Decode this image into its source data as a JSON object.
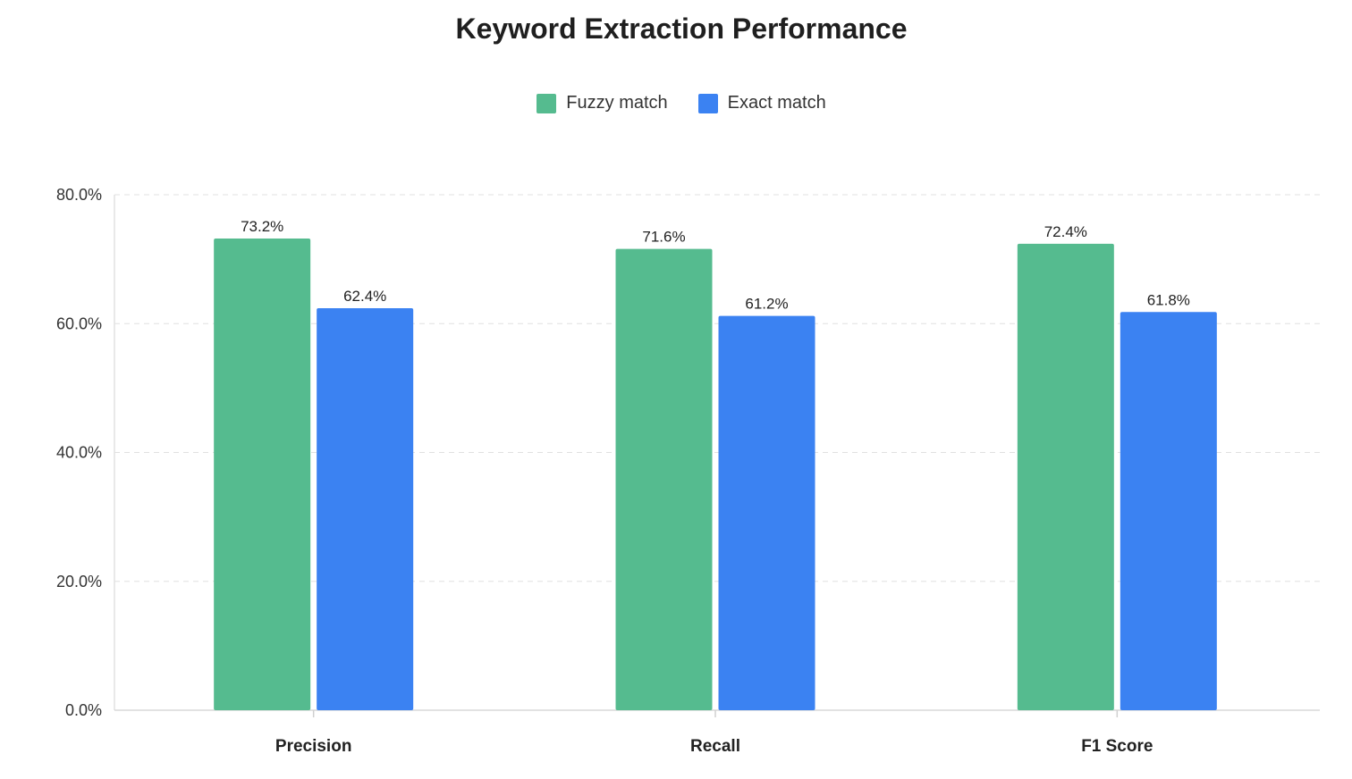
{
  "chart_data": {
    "type": "bar",
    "title": "Keyword Extraction Performance",
    "categories": [
      "Precision",
      "Recall",
      "F1 Score"
    ],
    "series": [
      {
        "name": "Fuzzy match",
        "values": [
          73.2,
          71.6,
          72.4
        ],
        "color": "#55bb8f"
      },
      {
        "name": "Exact match",
        "values": [
          62.4,
          61.2,
          61.8
        ],
        "color": "#3b82f2"
      }
    ],
    "value_labels": [
      [
        "73.2%",
        "71.6%",
        "72.4%"
      ],
      [
        "62.4%",
        "61.2%",
        "61.8%"
      ]
    ],
    "ylim": [
      0,
      80
    ],
    "yticks": [
      0,
      20,
      40,
      60,
      80
    ],
    "ytick_labels": [
      "0.0%",
      "20.0%",
      "40.0%",
      "60.0%",
      "80.0%"
    ],
    "grid": true,
    "legend_position": "top-center",
    "xlabel": "",
    "ylabel": ""
  }
}
